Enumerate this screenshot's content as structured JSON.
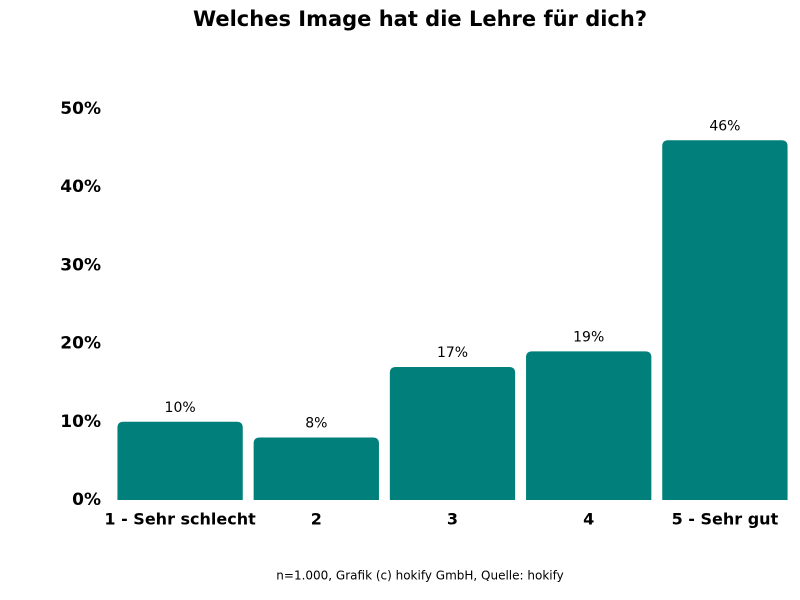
{
  "chart_data": {
    "type": "bar",
    "title": "Welches Image hat die Lehre für dich?",
    "categories": [
      "1 - Sehr schlecht",
      "2",
      "3",
      "4",
      "5 - Sehr gut"
    ],
    "values": [
      10,
      8,
      17,
      19,
      46
    ],
    "value_labels": [
      "10%",
      "8%",
      "17%",
      "19%",
      "46%"
    ],
    "color": "#007f7b",
    "ylim": [
      0,
      50
    ],
    "yticks": [
      {
        "value": 0,
        "label": "0%"
      },
      {
        "value": 10,
        "label": "10%"
      },
      {
        "value": 20,
        "label": "20%"
      },
      {
        "value": 30,
        "label": "30%"
      },
      {
        "value": 40,
        "label": "40%"
      },
      {
        "value": 50,
        "label": "50%"
      }
    ],
    "grid": false,
    "caption": "n=1.000, Grafik (c) hokify GmbH, Quelle: hokify"
  }
}
